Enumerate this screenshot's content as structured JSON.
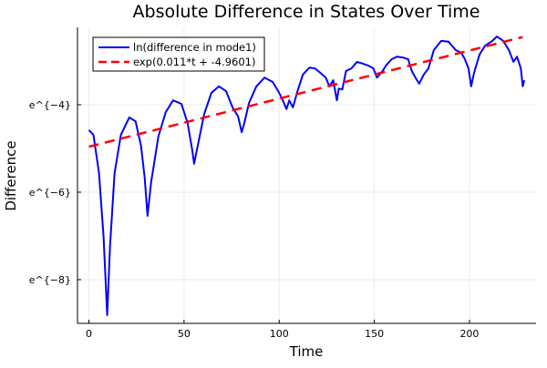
{
  "chart_data": {
    "type": "line",
    "title": "Absolute Difference in States Over Time",
    "xlabel": "Time",
    "ylabel": "Difference",
    "xlim": [
      -6,
      235
    ],
    "ylim_ln": [
      -9.0,
      -2.23
    ],
    "y_scale": "log (natural)",
    "grid": true,
    "legend_position": "top-left",
    "x_ticks": [
      {
        "v": 0,
        "label": "0"
      },
      {
        "v": 50,
        "label": "50"
      },
      {
        "v": 100,
        "label": "100"
      },
      {
        "v": 150,
        "label": "150"
      },
      {
        "v": 200,
        "label": "200"
      }
    ],
    "y_ticks": [
      {
        "v": -4,
        "label": "e^{−4}"
      },
      {
        "v": -6,
        "label": "e^{−6}"
      },
      {
        "v": -8,
        "label": "e^{−8}"
      }
    ],
    "series": [
      {
        "name": "ln(difference in mode1)",
        "color": "#0000ff",
        "style": "solid",
        "points_t_ln": [
          [
            0,
            -4.58
          ],
          [
            2.4,
            -4.69
          ],
          [
            5.3,
            -5.56
          ],
          [
            7.7,
            -7.02
          ],
          [
            9.6,
            -8.81
          ],
          [
            11.1,
            -7.23
          ],
          [
            13.5,
            -5.56
          ],
          [
            16.8,
            -4.69
          ],
          [
            21.2,
            -4.29
          ],
          [
            24.5,
            -4.38
          ],
          [
            27.4,
            -4.94
          ],
          [
            29.3,
            -5.67
          ],
          [
            30.8,
            -6.54
          ],
          [
            32.7,
            -5.77
          ],
          [
            36.5,
            -4.73
          ],
          [
            40.4,
            -4.17
          ],
          [
            44.2,
            -3.9
          ],
          [
            48.6,
            -3.98
          ],
          [
            51.9,
            -4.42
          ],
          [
            54.3,
            -5.04
          ],
          [
            55.3,
            -5.35
          ],
          [
            57.2,
            -4.94
          ],
          [
            60.6,
            -4.21
          ],
          [
            64.4,
            -3.73
          ],
          [
            68.3,
            -3.58
          ],
          [
            72.1,
            -3.69
          ],
          [
            75.5,
            -4.06
          ],
          [
            78.4,
            -4.27
          ],
          [
            80.3,
            -4.63
          ],
          [
            81.7,
            -4.42
          ],
          [
            84.1,
            -3.96
          ],
          [
            88.0,
            -3.58
          ],
          [
            92.3,
            -3.38
          ],
          [
            96.6,
            -3.48
          ],
          [
            99.5,
            -3.69
          ],
          [
            101.4,
            -3.85
          ],
          [
            103.8,
            -4.1
          ],
          [
            105.3,
            -3.9
          ],
          [
            107.2,
            -4.06
          ],
          [
            109.6,
            -3.69
          ],
          [
            112.5,
            -3.31
          ],
          [
            115.9,
            -3.15
          ],
          [
            118.8,
            -3.17
          ],
          [
            121.6,
            -3.27
          ],
          [
            124.5,
            -3.38
          ],
          [
            126.4,
            -3.58
          ],
          [
            128.4,
            -3.44
          ],
          [
            130.3,
            -3.9
          ],
          [
            131.3,
            -3.63
          ],
          [
            133.2,
            -3.65
          ],
          [
            135.1,
            -3.23
          ],
          [
            138.0,
            -3.17
          ],
          [
            140.9,
            -3.02
          ],
          [
            143.8,
            -3.06
          ],
          [
            146.6,
            -3.1
          ],
          [
            149.5,
            -3.17
          ],
          [
            151.4,
            -3.38
          ],
          [
            154.3,
            -3.23
          ],
          [
            156.2,
            -3.1
          ],
          [
            159.1,
            -2.96
          ],
          [
            162.0,
            -2.9
          ],
          [
            164.9,
            -2.92
          ],
          [
            167.8,
            -2.96
          ],
          [
            169.7,
            -3.23
          ],
          [
            171.6,
            -3.38
          ],
          [
            173.6,
            -3.52
          ],
          [
            176.0,
            -3.31
          ],
          [
            178.4,
            -3.17
          ],
          [
            181.3,
            -2.75
          ],
          [
            185.1,
            -2.54
          ],
          [
            189.0,
            -2.56
          ],
          [
            192.8,
            -2.75
          ],
          [
            195.7,
            -2.81
          ],
          [
            197.6,
            -2.96
          ],
          [
            199.5,
            -3.17
          ],
          [
            200.9,
            -3.58
          ],
          [
            202.4,
            -3.27
          ],
          [
            205.3,
            -2.85
          ],
          [
            208.2,
            -2.65
          ],
          [
            212.0,
            -2.54
          ],
          [
            214.4,
            -2.44
          ],
          [
            217.8,
            -2.54
          ],
          [
            220.7,
            -2.75
          ],
          [
            223.1,
            -3.02
          ],
          [
            225.0,
            -2.9
          ],
          [
            227.0,
            -3.17
          ],
          [
            228.0,
            -3.58
          ],
          [
            228.8,
            -3.44
          ]
        ]
      },
      {
        "name": "exp(0.011*t + -4.9601)",
        "color": "#ff0000",
        "style": "dashed",
        "slope": 0.011,
        "intercept": -4.9601,
        "t_range": [
          0,
          228
        ]
      }
    ]
  }
}
